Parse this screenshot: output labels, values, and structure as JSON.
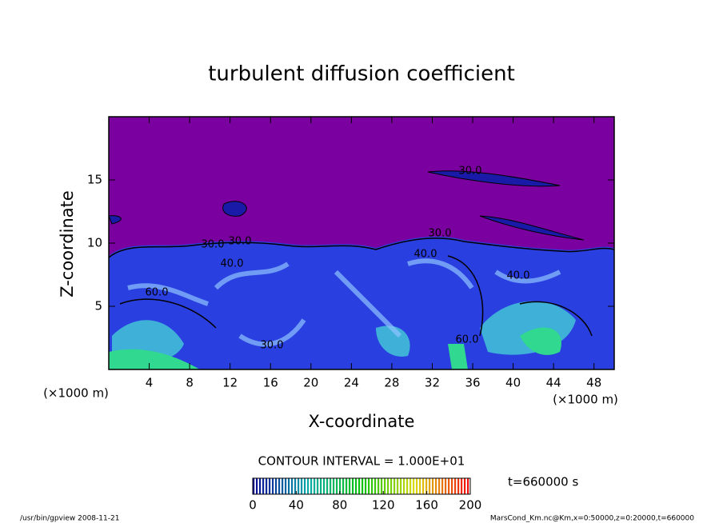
{
  "chart_data": {
    "type": "contour",
    "title": "turbulent diffusion coefficient",
    "x_label": "X-coordinate",
    "y_label": "Z-coordinate",
    "x_unit": "(×1000 m)",
    "y_unit": "(×1000 m)",
    "xlim": [
      0,
      50
    ],
    "ylim": [
      0,
      20
    ],
    "xticks": [
      4,
      8,
      12,
      16,
      20,
      24,
      28,
      32,
      36,
      40,
      44,
      48
    ],
    "yticks": [
      5,
      10,
      15
    ],
    "contour_interval": "CONTOUR INTERVAL = 1.000E+01",
    "contour_labels": [
      "30.0",
      "30.0",
      "40.0",
      "60.0",
      "30.0",
      "40.0",
      "40.0",
      "30.0",
      "30.0",
      "60.0"
    ],
    "colorbar": {
      "lim": [
        0,
        200
      ],
      "ticks": [
        0,
        40,
        80,
        120,
        160,
        200
      ]
    },
    "time_label": "t=660000 s",
    "footer_left": "/usr/bin/gpview  2008-11-21",
    "footer_right": "MarsCond_Km.nc@Km,x=0:50000,z=0:20000,t=660000"
  }
}
